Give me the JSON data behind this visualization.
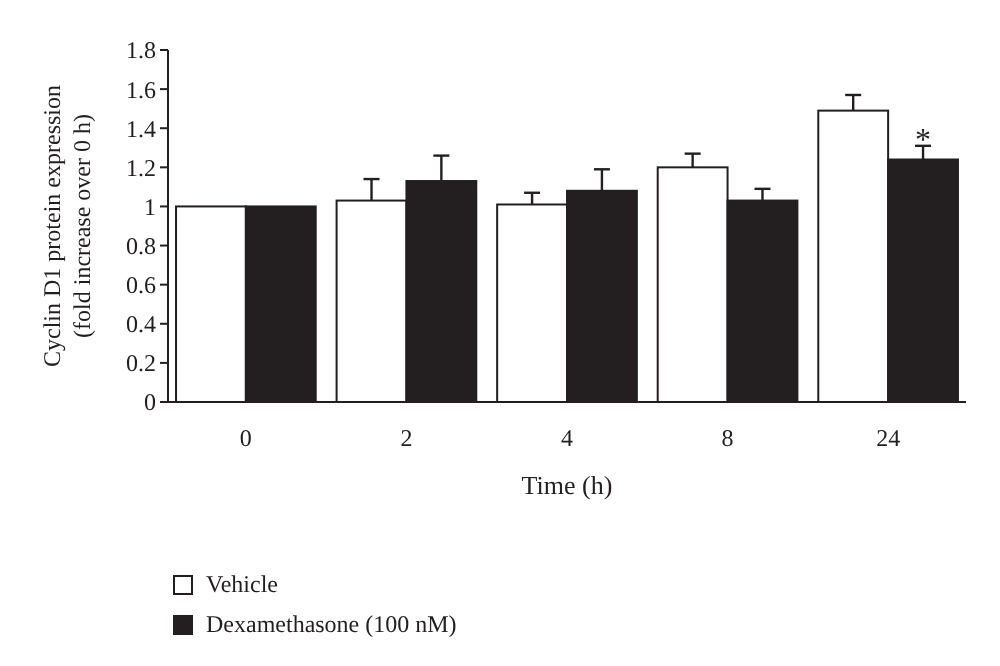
{
  "chart_data": {
    "type": "bar",
    "xlabel": "Time (h)",
    "ylabel": "Cyclin D1 protein expression\n(fold increase over 0 h)",
    "categories": [
      "0",
      "2",
      "4",
      "8",
      "24"
    ],
    "series": [
      {
        "name": "Vehicle",
        "color": "#ffffff",
        "values": [
          1,
          1.03,
          1.01,
          1.2,
          1.49
        ],
        "errors": [
          null,
          [
            1.03,
            1.14
          ],
          [
            1.01,
            1.07
          ],
          [
            1.2,
            1.27
          ],
          [
            1.49,
            1.57
          ]
        ]
      },
      {
        "name": "Dexamethasone (100 nM)",
        "color": "#231f20",
        "values": [
          1,
          1.13,
          1.08,
          1.03,
          1.24
        ],
        "errors": [
          null,
          [
            1.13,
            1.26
          ],
          [
            1.08,
            1.19
          ],
          [
            1.03,
            1.09
          ],
          [
            1.24,
            1.31
          ]
        ]
      }
    ],
    "ylim": [
      0,
      1.8
    ],
    "yticks": [
      0,
      0.2,
      0.4,
      0.6,
      0.8,
      1,
      1.2,
      1.4,
      1.6,
      1.8
    ],
    "grid": false,
    "legend": "bottom left",
    "annotations": [
      {
        "text": "*",
        "x": "24",
        "y": 1.35
      }
    ]
  }
}
